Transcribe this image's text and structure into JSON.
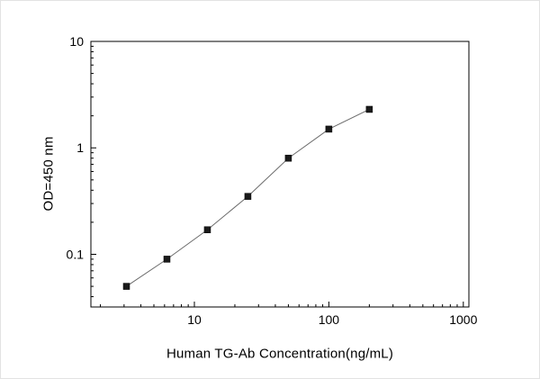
{
  "chart_data": {
    "type": "line",
    "title": "",
    "xlabel": "Human TG-Ab Concentration(ng/mL)",
    "ylabel": "OD=450 nm",
    "x": [
      3.125,
      6.25,
      12.5,
      25,
      50,
      100,
      200
    ],
    "y": [
      0.05,
      0.09,
      0.17,
      0.35,
      0.8,
      1.5,
      2.3
    ],
    "x_scale": "log",
    "y_scale": "log",
    "xlim": [
      1.7,
      1100
    ],
    "ylim": [
      0.032,
      10
    ],
    "x_major_ticks": [
      10,
      100,
      1000
    ],
    "x_major_tick_labels": [
      "10",
      "100",
      "1000"
    ],
    "y_major_ticks": [
      0.1,
      1,
      10
    ],
    "y_major_tick_labels": [
      "0.1",
      "1",
      "10"
    ],
    "marker": "square",
    "marker_color": "#1a1a1a",
    "line_color": "#6b6b6b",
    "frame_color": "#000000",
    "grid": false,
    "legend": null
  }
}
